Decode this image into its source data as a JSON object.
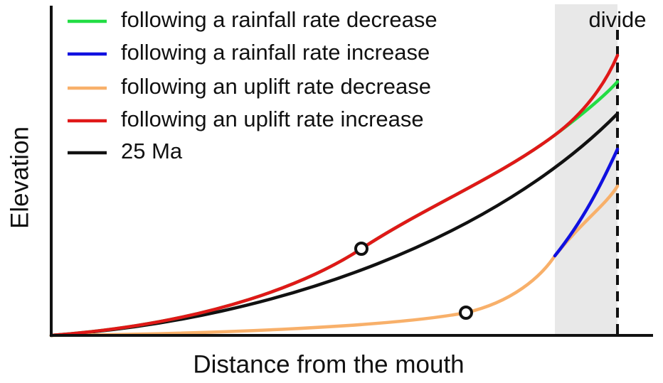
{
  "axes": {
    "x_label": "Distance from the mouth",
    "y_label": "Elevation"
  },
  "divide_label": "divide",
  "legend": [
    {
      "label": "following a rainfall rate decrease",
      "color": "#22dd44"
    },
    {
      "label": "following a rainfall rate increase",
      "color": "#1010e0"
    },
    {
      "label": "following an uplift rate decrease",
      "color": "#f8b06a"
    },
    {
      "label": "following an uplift rate increase",
      "color": "#e01818"
    },
    {
      "label": "25 Ma",
      "color": "#111111"
    }
  ]
}
